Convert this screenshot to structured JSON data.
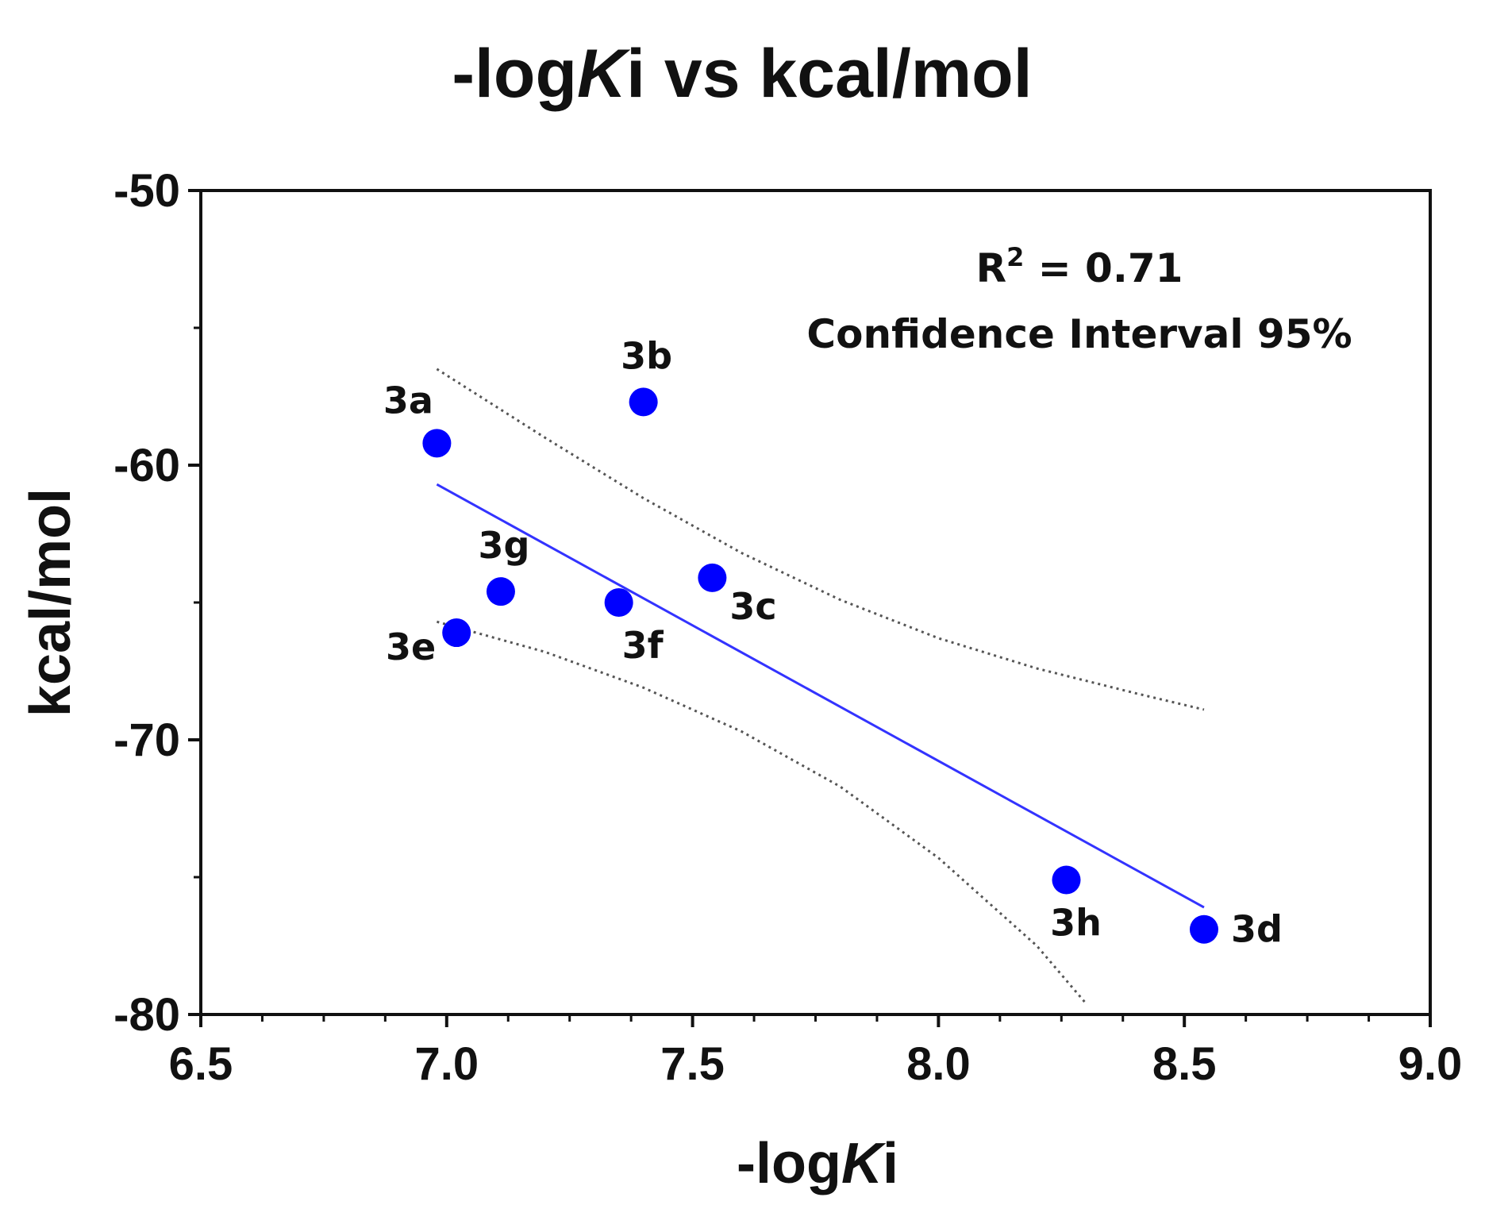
{
  "chart_data": {
    "type": "scatter",
    "title_prefix": "-log",
    "title_italic": "K",
    "title_suffix": "i vs kcal/mol",
    "xlabel_prefix": "-log",
    "xlabel_italic": "K",
    "xlabel_suffix": "i",
    "ylabel": "kcal/mol",
    "xlim": [
      6.5,
      9.0
    ],
    "ylim": [
      -80,
      -50
    ],
    "x_ticks": [
      6.5,
      7.0,
      7.5,
      8.0,
      8.5,
      9.0
    ],
    "x_tick_labels": [
      "6.5",
      "7.0",
      "7.5",
      "8.0",
      "8.5",
      "9.0"
    ],
    "y_ticks": [
      -50,
      -60,
      -70,
      -80
    ],
    "y_tick_labels": [
      "-50",
      "-60",
      "-70",
      "-80"
    ],
    "x_minor_step": 0.125,
    "y_minor_step": 5,
    "grid": false,
    "points": [
      {
        "label": "3a",
        "x": 6.98,
        "y": -59.2,
        "label_pos": "upper-left"
      },
      {
        "label": "3b",
        "x": 7.4,
        "y": -57.7,
        "label_pos": "above"
      },
      {
        "label": "3c",
        "x": 7.54,
        "y": -64.1,
        "label_pos": "lower-right"
      },
      {
        "label": "3d",
        "x": 8.54,
        "y": -76.9,
        "label_pos": "right"
      },
      {
        "label": "3e",
        "x": 7.02,
        "y": -66.1,
        "label_pos": "lower-left"
      },
      {
        "label": "3f",
        "x": 7.35,
        "y": -65.0,
        "label_pos": "below"
      },
      {
        "label": "3g",
        "x": 7.11,
        "y": -64.6,
        "label_pos": "above"
      },
      {
        "label": "3h",
        "x": 8.26,
        "y": -75.1,
        "label_pos": "below"
      }
    ],
    "regression_line": {
      "x": [
        6.98,
        8.54
      ],
      "y": [
        -60.7,
        -76.1
      ]
    },
    "confidence_upper": {
      "x": [
        6.98,
        7.2,
        7.4,
        7.6,
        7.8,
        8.0,
        8.2,
        8.4,
        8.54
      ],
      "y": [
        -56.5,
        -59.0,
        -61.2,
        -63.2,
        -64.9,
        -66.3,
        -67.4,
        -68.3,
        -68.9
      ]
    },
    "confidence_lower": {
      "x": [
        6.98,
        7.2,
        7.4,
        7.6,
        7.8,
        8.0,
        8.2,
        8.3
      ],
      "y": [
        -65.7,
        -66.8,
        -68.1,
        -69.7,
        -71.7,
        -74.3,
        -77.5,
        -79.6
      ]
    },
    "annotation_r2_base": "R",
    "annotation_r2_sup": "2",
    "annotation_r2_value": " = 0.71",
    "annotation_ci": "Confidence Interval 95%",
    "colors": {
      "points": "#0000ff",
      "regression": "#3333ff",
      "confidence": "#555555",
      "axes": "#111111"
    }
  }
}
